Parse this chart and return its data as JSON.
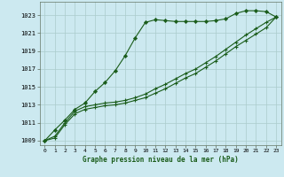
{
  "title": "Graphe pression niveau de la mer (hPa)",
  "background_color": "#cce9f0",
  "grid_color": "#aacccc",
  "line_color": "#1a5c1a",
  "ylim": [
    1008.5,
    1024.5
  ],
  "xlim": [
    -0.5,
    23.5
  ],
  "yticks": [
    1009,
    1011,
    1013,
    1015,
    1017,
    1019,
    1021,
    1023
  ],
  "xticks": [
    0,
    1,
    2,
    3,
    4,
    5,
    6,
    7,
    8,
    9,
    10,
    11,
    12,
    13,
    14,
    15,
    16,
    17,
    18,
    19,
    20,
    21,
    22,
    23
  ],
  "series1": [
    1009.0,
    1010.2,
    1011.3,
    1012.5,
    1013.2,
    1014.5,
    1015.5,
    1016.8,
    1018.5,
    1020.5,
    1022.2,
    1022.5,
    1022.4,
    1022.3,
    1022.3,
    1022.3,
    1022.3,
    1022.4,
    1022.6,
    1023.2,
    1023.5,
    1023.5,
    1023.4,
    1022.8
  ],
  "series2": [
    1009.0,
    1009.5,
    1011.0,
    1012.3,
    1012.8,
    1013.0,
    1013.2,
    1013.3,
    1013.5,
    1013.8,
    1014.2,
    1014.8,
    1015.3,
    1015.9,
    1016.5,
    1017.0,
    1017.7,
    1018.4,
    1019.2,
    1020.0,
    1020.8,
    1021.5,
    1022.2,
    1022.8
  ],
  "series3": [
    1009.0,
    1009.3,
    1010.8,
    1012.0,
    1012.5,
    1012.7,
    1012.9,
    1013.0,
    1013.2,
    1013.5,
    1013.8,
    1014.3,
    1014.8,
    1015.4,
    1016.0,
    1016.5,
    1017.2,
    1017.9,
    1018.7,
    1019.5,
    1020.2,
    1020.9,
    1021.6,
    1022.8
  ]
}
